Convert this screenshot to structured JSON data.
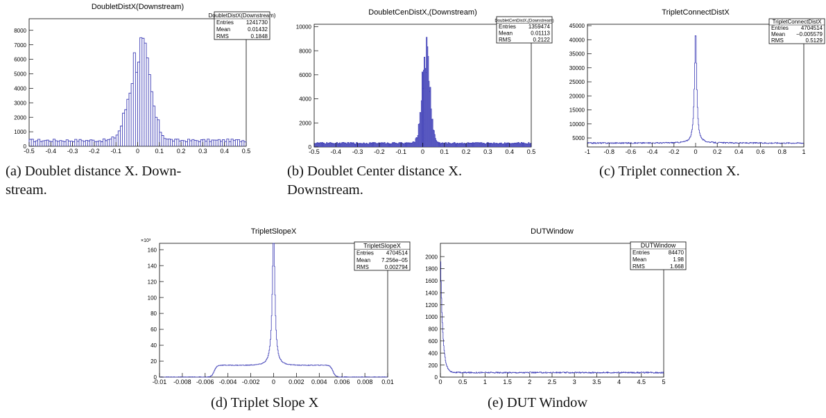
{
  "panels": [
    {
      "id": "a",
      "caption": "(a)  Doublet  distance  X.  Down-stream.",
      "caption_lines": [
        "(a)  Doublet  distance  X.  Down-",
        "stream."
      ],
      "chart_data": {
        "type": "bar",
        "title": "DoubletDistX(Downstream)",
        "xlim": [
          -0.5,
          0.5
        ],
        "ylim": [
          0,
          8800
        ],
        "x_ticks": [
          "-0.5",
          "-0.4",
          "-0.3",
          "-0.2",
          "-0.1",
          "0",
          "0.1",
          "0.2",
          "0.3",
          "0.4",
          "0.5"
        ],
        "y_ticks": [
          "0",
          "1000",
          "2000",
          "3000",
          "4000",
          "5000",
          "6000",
          "7000",
          "8000"
        ],
        "stats": {
          "name": "DoubletDistX(Downstream)",
          "entries": "1241730",
          "mean": "0.01432",
          "rms": "0.1848"
        },
        "shape": {
          "kind": "comb",
          "baseline": 500,
          "peak": 8500,
          "center": 0.01,
          "width": 0.045,
          "bins": 100
        }
      }
    },
    {
      "id": "b",
      "caption": "(b)  Doublet  Center  distance  X. Downstream.",
      "caption_lines": [
        "(b)  Doublet  Center  distance  X.",
        "Downstream."
      ],
      "chart_data": {
        "type": "bar",
        "title": "DoubletCenDistX,(Downstream)",
        "xlim": [
          -0.5,
          0.5
        ],
        "ylim": [
          0,
          10200
        ],
        "x_ticks": [
          "-0.5",
          "-0.4",
          "-0.3",
          "-0.2",
          "-0.1",
          "0",
          "0.1",
          "0.2",
          "0.3",
          "0.4",
          "0.5"
        ],
        "y_ticks": [
          "0",
          "2000",
          "4000",
          "6000",
          "8000",
          "10000"
        ],
        "stats": {
          "name": "DoubletCenDistX,(Downstream)",
          "entries": "1359474",
          "mean": "0.01113",
          "rms": "0.2122"
        },
        "shape": {
          "kind": "comb",
          "baseline": 380,
          "peak": 9700,
          "center": 0.015,
          "width": 0.018,
          "bins": 300
        }
      }
    },
    {
      "id": "c",
      "caption": "(c) Triplet connection X.",
      "caption_lines": [
        "(c) Triplet connection X."
      ],
      "chart_data": {
        "type": "line",
        "title": "TripletConnectDistX",
        "xlim": [
          -1,
          1
        ],
        "ylim": [
          1800,
          45500
        ],
        "x_ticks": [
          "-1",
          "-0.8",
          "-0.6",
          "-0.4",
          "-0.2",
          "0",
          "0.2",
          "0.4",
          "0.6",
          "0.8",
          "1"
        ],
        "y_ticks": [
          "5000",
          "10000",
          "15000",
          "20000",
          "25000",
          "30000",
          "35000",
          "40000",
          "45000"
        ],
        "stats": {
          "name": "TripletConnectDistX",
          "entries": "4704514",
          "mean": "−0.005579",
          "rms": "0.5129"
        },
        "shape": {
          "kind": "peak",
          "baseline": 3200,
          "peak": 43000,
          "center": 0,
          "width": 0.012,
          "bins": 400,
          "noise": 200
        }
      }
    },
    {
      "id": "d",
      "caption": "(d) Triplet Slope X",
      "caption_lines": [
        "(d) Triplet Slope X"
      ],
      "chart_data": {
        "type": "line",
        "title": "TripletSlopeX",
        "xlim": [
          -0.01,
          0.01
        ],
        "ylim": [
          0,
          168
        ],
        "y_multiplier": "×10³",
        "x_ticks": [
          "-0.01",
          "-0.008",
          "-0.006",
          "-0.004",
          "-0.002",
          "0",
          "0.002",
          "0.004",
          "0.006",
          "0.008",
          "0.01"
        ],
        "y_ticks": [
          "0",
          "20",
          "40",
          "60",
          "80",
          "100",
          "120",
          "140",
          "160"
        ],
        "stats": {
          "name": "TripletSlopeX",
          "entries": "4704514",
          "mean": "7.256e−05",
          "rms": "0.002794"
        },
        "shape": {
          "kind": "plateau",
          "plateau": 15,
          "plateau_edge": 0.0052,
          "peak": 161,
          "center": 0,
          "width": 0.00014,
          "bins": 400,
          "noise": 0.4
        }
      }
    },
    {
      "id": "e",
      "caption": "(e) DUT Window",
      "caption_lines": [
        "(e) DUT Window"
      ],
      "chart_data": {
        "type": "line",
        "title": "DUTWindow",
        "xlim": [
          0,
          5
        ],
        "ylim": [
          0,
          2220
        ],
        "x_ticks": [
          "0",
          "0.5",
          "1",
          "1.5",
          "2",
          "2.5",
          "3",
          "3.5",
          "4",
          "4.5",
          "5"
        ],
        "y_ticks": [
          "0",
          "200",
          "400",
          "600",
          "800",
          "1000",
          "1200",
          "1400",
          "1600",
          "1800",
          "2000"
        ],
        "stats": {
          "name": "DUTWindow",
          "entries": "84470",
          "mean": "1.98",
          "rms": "1.668"
        },
        "shape": {
          "kind": "decay",
          "baseline": 75,
          "peak": 2100,
          "decay": 0.05,
          "bins": 500,
          "noise": 10
        }
      }
    }
  ],
  "stat_labels": {
    "entries": "Entries",
    "mean": "Mean",
    "rms": "RMS"
  },
  "colors": {
    "hist": "#3b3bb5",
    "axis": "#000000",
    "box": "#000000"
  }
}
